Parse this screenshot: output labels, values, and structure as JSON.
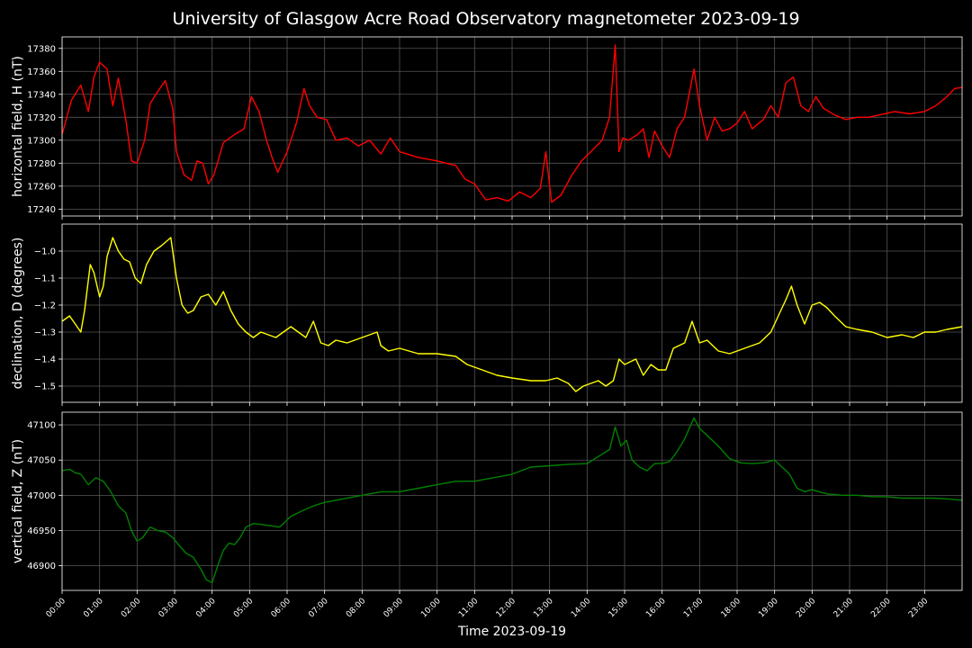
{
  "title": "University of Glasgow Acre Road Observatory magnetometer 2023-09-19",
  "chart_data": [
    {
      "type": "line",
      "ylabel": "horizontal field, H (nT)",
      "color": "#ff0000",
      "ylim": [
        17234,
        17390
      ],
      "yticks": [
        17240,
        17260,
        17280,
        17300,
        17320,
        17340,
        17360,
        17380
      ],
      "grid": true,
      "series": [
        {
          "x": [
            0,
            0.25,
            0.5,
            0.7,
            0.85,
            1.0,
            1.2,
            1.35,
            1.5,
            1.7,
            1.85,
            2.0,
            2.2,
            2.35,
            2.5,
            2.75,
            2.95,
            3.05,
            3.25,
            3.45,
            3.6,
            3.75,
            3.9,
            4.05,
            4.3,
            4.6,
            4.85,
            5.05,
            5.25,
            5.45,
            5.6,
            5.75,
            6.0,
            6.25,
            6.45,
            6.6,
            6.8,
            7.05,
            7.3,
            7.6,
            7.9,
            8.2,
            8.5,
            8.75,
            9.0,
            9.5,
            10.0,
            10.5,
            10.75,
            11.0,
            11.3,
            11.6,
            11.9,
            12.2,
            12.5,
            12.75,
            12.9,
            13.05,
            13.3,
            13.6,
            13.85,
            14.1,
            14.4,
            14.6,
            14.75,
            14.85,
            14.95,
            15.1,
            15.35,
            15.5,
            15.65,
            15.8,
            16.0,
            16.2,
            16.4,
            16.6,
            16.85,
            17.0,
            17.2,
            17.4,
            17.6,
            17.8,
            18.0,
            18.2,
            18.4,
            18.7,
            18.9,
            19.1,
            19.3,
            19.5,
            19.7,
            19.9,
            20.1,
            20.3,
            20.6,
            20.9,
            21.2,
            21.5,
            21.8,
            22.2,
            22.6,
            23.0,
            23.3,
            23.6,
            23.8,
            24.0
          ],
          "values": [
            17305,
            17335,
            17348,
            17325,
            17355,
            17368,
            17362,
            17330,
            17354,
            17318,
            17282,
            17280,
            17300,
            17332,
            17340,
            17352,
            17328,
            17290,
            17270,
            17265,
            17282,
            17280,
            17262,
            17270,
            17298,
            17305,
            17310,
            17338,
            17325,
            17300,
            17285,
            17272,
            17290,
            17315,
            17345,
            17330,
            17320,
            17318,
            17300,
            17302,
            17295,
            17300,
            17288,
            17302,
            17290,
            17285,
            17282,
            17278,
            17266,
            17262,
            17248,
            17250,
            17247,
            17255,
            17250,
            17258,
            17290,
            17246,
            17252,
            17270,
            17282,
            17290,
            17300,
            17320,
            17383,
            17290,
            17302,
            17300,
            17305,
            17310,
            17285,
            17308,
            17295,
            17285,
            17310,
            17320,
            17362,
            17330,
            17300,
            17320,
            17308,
            17310,
            17315,
            17325,
            17310,
            17318,
            17330,
            17320,
            17350,
            17355,
            17330,
            17325,
            17338,
            17328,
            17322,
            17318,
            17320,
            17320,
            17322,
            17325,
            17323,
            17325,
            17330,
            17338,
            17345,
            17346
          ]
        }
      ]
    },
    {
      "type": "line",
      "ylabel": "declination, D (degrees)",
      "color": "#ffff00",
      "ylim": [
        -1.56,
        -0.9
      ],
      "yticks": [
        -1.5,
        -1.4,
        -1.3,
        -1.2,
        -1.1,
        -1.0
      ],
      "ytick_labels": [
        "−1.5",
        "−1.4",
        "−1.3",
        "−1.2",
        "−1.1",
        "−1.0"
      ],
      "grid": true,
      "series": [
        {
          "x": [
            0,
            0.2,
            0.35,
            0.5,
            0.6,
            0.75,
            0.85,
            1.0,
            1.1,
            1.2,
            1.35,
            1.5,
            1.65,
            1.8,
            1.95,
            2.1,
            2.25,
            2.45,
            2.65,
            2.9,
            3.05,
            3.2,
            3.35,
            3.5,
            3.7,
            3.9,
            4.1,
            4.3,
            4.5,
            4.7,
            4.9,
            5.1,
            5.3,
            5.5,
            5.7,
            5.9,
            6.1,
            6.3,
            6.5,
            6.7,
            6.9,
            7.1,
            7.3,
            7.6,
            8.0,
            8.4,
            8.5,
            8.7,
            9.0,
            9.5,
            10.0,
            10.5,
            10.8,
            11.2,
            11.6,
            12.0,
            12.5,
            12.9,
            13.2,
            13.5,
            13.7,
            13.9,
            14.1,
            14.3,
            14.5,
            14.7,
            14.85,
            15.0,
            15.3,
            15.5,
            15.7,
            15.9,
            16.1,
            16.3,
            16.6,
            16.8,
            17.0,
            17.2,
            17.5,
            17.8,
            18.2,
            18.6,
            18.9,
            19.1,
            19.3,
            19.45,
            19.6,
            19.8,
            20.0,
            20.2,
            20.4,
            20.6,
            20.9,
            21.2,
            21.6,
            22.0,
            22.4,
            22.7,
            23.0,
            23.3,
            23.6,
            24.0
          ],
          "values": [
            -1.26,
            -1.24,
            -1.27,
            -1.3,
            -1.22,
            -1.05,
            -1.08,
            -1.17,
            -1.13,
            -1.02,
            -0.95,
            -1.0,
            -1.03,
            -1.04,
            -1.1,
            -1.12,
            -1.05,
            -1.0,
            -0.98,
            -0.95,
            -1.1,
            -1.2,
            -1.23,
            -1.22,
            -1.17,
            -1.16,
            -1.2,
            -1.15,
            -1.22,
            -1.27,
            -1.3,
            -1.32,
            -1.3,
            -1.31,
            -1.32,
            -1.3,
            -1.28,
            -1.3,
            -1.32,
            -1.26,
            -1.34,
            -1.35,
            -1.33,
            -1.34,
            -1.32,
            -1.3,
            -1.35,
            -1.37,
            -1.36,
            -1.38,
            -1.38,
            -1.39,
            -1.42,
            -1.44,
            -1.46,
            -1.47,
            -1.48,
            -1.48,
            -1.47,
            -1.49,
            -1.52,
            -1.5,
            -1.49,
            -1.48,
            -1.5,
            -1.48,
            -1.4,
            -1.42,
            -1.4,
            -1.46,
            -1.42,
            -1.44,
            -1.44,
            -1.36,
            -1.34,
            -1.26,
            -1.34,
            -1.33,
            -1.37,
            -1.38,
            -1.36,
            -1.34,
            -1.3,
            -1.24,
            -1.18,
            -1.13,
            -1.2,
            -1.27,
            -1.2,
            -1.19,
            -1.21,
            -1.24,
            -1.28,
            -1.29,
            -1.3,
            -1.32,
            -1.31,
            -1.32,
            -1.3,
            -1.3,
            -1.29,
            -1.28
          ]
        }
      ]
    },
    {
      "type": "line",
      "ylabel": "vertical field, Z (nT)",
      "color": "#008000",
      "ylim": [
        46865,
        47118
      ],
      "yticks": [
        46900,
        46950,
        47000,
        47050,
        47100
      ],
      "grid": true,
      "series": [
        {
          "x": [
            0,
            0.2,
            0.35,
            0.5,
            0.7,
            0.9,
            1.1,
            1.3,
            1.5,
            1.7,
            1.85,
            2.0,
            2.15,
            2.35,
            2.55,
            2.75,
            2.95,
            3.1,
            3.3,
            3.5,
            3.7,
            3.85,
            4.0,
            4.15,
            4.3,
            4.45,
            4.6,
            4.75,
            4.9,
            5.1,
            5.4,
            5.8,
            6.1,
            6.4,
            6.7,
            7.0,
            7.5,
            8.0,
            8.5,
            9.0,
            9.5,
            10.0,
            10.5,
            11.0,
            11.5,
            12.0,
            12.5,
            13.0,
            13.5,
            14.0,
            14.3,
            14.6,
            14.75,
            14.9,
            15.05,
            15.2,
            15.4,
            15.6,
            15.8,
            16.0,
            16.2,
            16.4,
            16.6,
            16.85,
            17.0,
            17.2,
            17.5,
            17.8,
            18.1,
            18.4,
            18.7,
            19.0,
            19.2,
            19.4,
            19.6,
            19.8,
            20.0,
            20.4,
            20.8,
            21.2,
            21.6,
            22.0,
            22.4,
            22.8,
            23.2,
            23.6,
            24.0
          ],
          "values": [
            47035,
            47037,
            47032,
            47030,
            47015,
            47025,
            47020,
            47005,
            46985,
            46975,
            46950,
            46935,
            46940,
            46955,
            46950,
            46948,
            46940,
            46930,
            46918,
            46912,
            46895,
            46880,
            46876,
            46900,
            46922,
            46932,
            46930,
            46940,
            46955,
            46960,
            46958,
            46955,
            46970,
            46978,
            46985,
            46990,
            46995,
            47000,
            47005,
            47005,
            47010,
            47015,
            47020,
            47020,
            47025,
            47030,
            47040,
            47042,
            47044,
            47045,
            47055,
            47065,
            47097,
            47070,
            47078,
            47050,
            47040,
            47035,
            47045,
            47045,
            47048,
            47062,
            47080,
            47110,
            47095,
            47085,
            47070,
            47052,
            47046,
            47045,
            47046,
            47050,
            47040,
            47030,
            47010,
            47005,
            47008,
            47002,
            47000,
            47000,
            46998,
            46998,
            46996,
            46996,
            46996,
            46995,
            46993
          ]
        }
      ]
    }
  ],
  "shared_x": {
    "label": "Time 2023-09-19",
    "xlim": [
      0,
      24
    ],
    "ticks": [
      "00:00",
      "01:00",
      "02:00",
      "03:00",
      "04:00",
      "05:00",
      "06:00",
      "07:00",
      "08:00",
      "09:00",
      "10:00",
      "11:00",
      "12:00",
      "13:00",
      "14:00",
      "15:00",
      "16:00",
      "17:00",
      "18:00",
      "19:00",
      "20:00",
      "21:00",
      "22:00",
      "23:00"
    ]
  }
}
